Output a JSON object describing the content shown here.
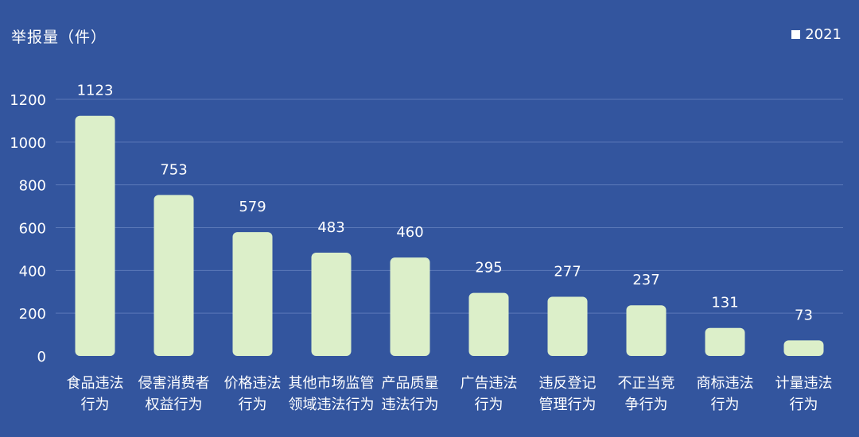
{
  "chart_data": {
    "type": "bar",
    "ylabel": "举报量（件）",
    "ylim": [
      0,
      1200
    ],
    "yticks": [
      0,
      200,
      400,
      600,
      800,
      1000,
      1200
    ],
    "grid": true,
    "legend_position": "top-right",
    "series": [
      {
        "name": "2021",
        "color": "#dcefc9",
        "values": [
          1123,
          753,
          579,
          483,
          460,
          295,
          277,
          237,
          131,
          73
        ]
      }
    ],
    "categories": [
      [
        "食品违法",
        "行为"
      ],
      [
        "侵害消费者",
        "权益行为"
      ],
      [
        "价格违法",
        "行为"
      ],
      [
        "其他市场监管",
        "领域违法行为"
      ],
      [
        "产品质量",
        "违法行为"
      ],
      [
        "广告违法",
        "行为"
      ],
      [
        "违反登记",
        "管理行为"
      ],
      [
        "不正当竞",
        "争行为"
      ],
      [
        "商标违法",
        "行为"
      ],
      [
        "计量违法",
        "行为"
      ]
    ]
  },
  "colors": {
    "background": "#33559e",
    "bar": "#dcefc9",
    "gridline": "#5b78b8",
    "text": "#ffffff"
  }
}
